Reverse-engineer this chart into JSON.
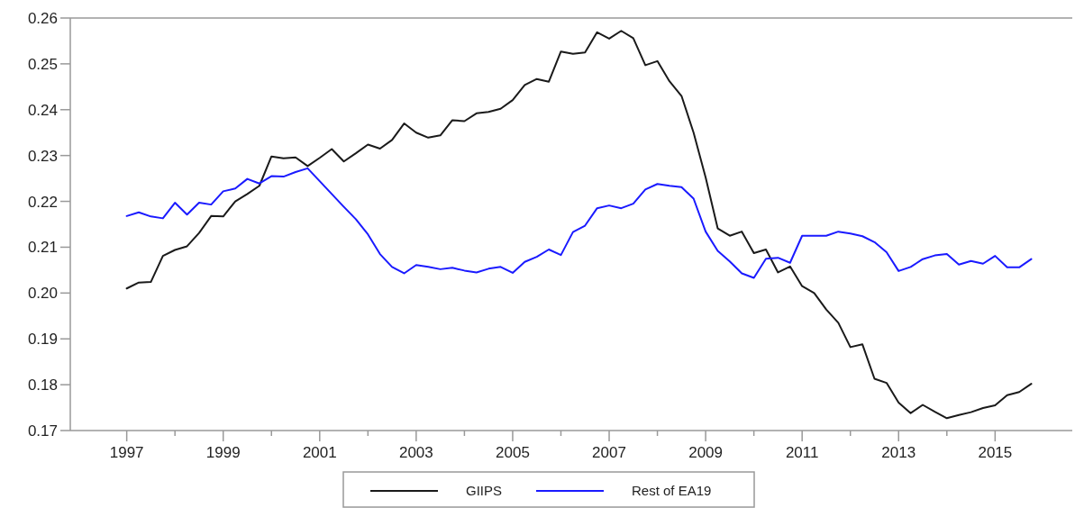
{
  "chart_data": {
    "type": "line",
    "x": [
      1997,
      1997.25,
      1997.5,
      1997.75,
      1998,
      1998.25,
      1998.5,
      1998.75,
      1999,
      1999.25,
      1999.5,
      1999.75,
      2000,
      2000.25,
      2000.5,
      2000.75,
      2001,
      2001.25,
      2001.5,
      2001.75,
      2002,
      2002.25,
      2002.5,
      2002.75,
      2003,
      2003.25,
      2003.5,
      2003.75,
      2004,
      2004.25,
      2004.5,
      2004.75,
      2005,
      2005.25,
      2005.5,
      2005.75,
      2006,
      2006.25,
      2006.5,
      2006.75,
      2007,
      2007.25,
      2007.5,
      2007.75,
      2008,
      2008.25,
      2008.5,
      2008.75,
      2009,
      2009.25,
      2009.5,
      2009.75,
      2010,
      2010.25,
      2010.5,
      2010.75,
      2011,
      2011.25,
      2011.5,
      2011.75,
      2012,
      2012.25,
      2012.5,
      2012.75,
      2013,
      2013.25,
      2013.5,
      2013.75,
      2014,
      2014.25,
      2014.5,
      2014.75,
      2015,
      2015.25,
      2015.5,
      2015.75
    ],
    "series": [
      {
        "name": "GIIPS",
        "color": "#1a1a1a",
        "values": [
          0.201,
          0.2023,
          0.2024,
          0.2081,
          0.2094,
          0.2102,
          0.2131,
          0.2168,
          0.2167,
          0.22,
          0.2216,
          0.2234,
          0.2298,
          0.2294,
          0.2296,
          0.2277,
          0.2295,
          0.2314,
          0.2287,
          0.2305,
          0.2324,
          0.2315,
          0.2334,
          0.237,
          0.235,
          0.2339,
          0.2344,
          0.2377,
          0.2375,
          0.2392,
          0.2395,
          0.2402,
          0.2421,
          0.2454,
          0.2467,
          0.2461,
          0.2527,
          0.2522,
          0.2525,
          0.2569,
          0.2555,
          0.2572,
          0.2556,
          0.2497,
          0.2506,
          0.2462,
          0.243,
          0.235,
          0.2252,
          0.2141,
          0.2125,
          0.2134,
          0.2087,
          0.2095,
          0.2045,
          0.2058,
          0.2015,
          0.2,
          0.1964,
          0.1935,
          0.1882,
          0.1888,
          0.1813,
          0.1804,
          0.1761,
          0.1738,
          0.1756,
          0.1741,
          0.1727,
          0.1734,
          0.174,
          0.1749,
          0.1755,
          0.1777,
          0.1784,
          0.1802
        ]
      },
      {
        "name": "Rest of EA19",
        "color": "#1a1aff",
        "values": [
          0.2168,
          0.2176,
          0.2167,
          0.2163,
          0.2197,
          0.2171,
          0.2197,
          0.2193,
          0.2222,
          0.2228,
          0.2249,
          0.2239,
          0.2255,
          0.2254,
          0.2264,
          0.2272,
          0.2244,
          0.2216,
          0.2188,
          0.2161,
          0.2128,
          0.2085,
          0.2057,
          0.2043,
          0.2061,
          0.2057,
          0.2052,
          0.2055,
          0.2049,
          0.2045,
          0.2053,
          0.2057,
          0.2044,
          0.2068,
          0.2079,
          0.2095,
          0.2083,
          0.2133,
          0.2147,
          0.2185,
          0.2191,
          0.2185,
          0.2195,
          0.2226,
          0.2238,
          0.2234,
          0.2231,
          0.2206,
          0.2134,
          0.2092,
          0.2069,
          0.2043,
          0.2033,
          0.2075,
          0.2077,
          0.2066,
          0.2125,
          0.2125,
          0.2125,
          0.2134,
          0.213,
          0.2124,
          0.2111,
          0.2089,
          0.2048,
          0.2057,
          0.2074,
          0.2082,
          0.2085,
          0.2062,
          0.207,
          0.2064,
          0.2081,
          0.2056,
          0.2056,
          0.2074
        ]
      }
    ],
    "xlim": [
      1995.83,
      2016.6
    ],
    "xticks": [
      1997,
      {
        "value": 1998,
        "label": null
      },
      1999,
      {
        "value": 2000,
        "label": null
      },
      2001,
      {
        "value": 2002,
        "label": null
      },
      2003,
      {
        "value": 2004,
        "label": null
      },
      2005,
      {
        "value": 2006,
        "label": null
      },
      2007,
      {
        "value": 2008,
        "label": null
      },
      2009,
      {
        "value": 2010,
        "label": null
      },
      2011,
      {
        "value": 2012,
        "label": null
      },
      2013,
      {
        "value": 2014,
        "label": null
      },
      2015
    ],
    "ylim": [
      0.17,
      0.26
    ],
    "yticks": [
      {
        "value": 0.17,
        "label": "0.17"
      },
      {
        "value": 0.18,
        "label": "0.18"
      },
      {
        "value": 0.19,
        "label": "0.19"
      },
      {
        "value": 0.2,
        "label": "0.20"
      },
      {
        "value": 0.21,
        "label": "0.21"
      },
      {
        "value": 0.22,
        "label": "0.22"
      },
      {
        "value": 0.23,
        "label": "0.23"
      },
      {
        "value": 0.24,
        "label": "0.24"
      },
      {
        "value": 0.25,
        "label": "0.25"
      },
      {
        "value": 0.26,
        "label": "0.26"
      }
    ],
    "legend": "bottom",
    "grid": false
  }
}
